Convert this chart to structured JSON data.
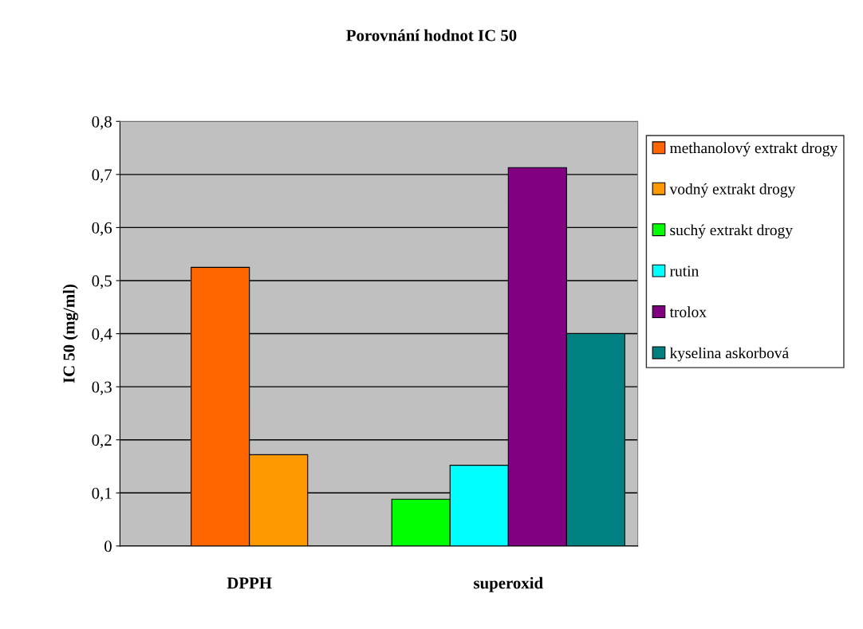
{
  "chart_data": {
    "type": "bar",
    "title": "Porovnání hodnot IC 50",
    "ylabel": "IC 50 (mg/ml)",
    "categories": [
      "DPPH",
      "superoxid"
    ],
    "series": [
      {
        "name": "methanolový extrakt drogy",
        "color": "#ff6600",
        "values": [
          0.525,
          null
        ]
      },
      {
        "name": "vodný extrakt drogy",
        "color": "#ff9900",
        "values": [
          0.172,
          null
        ]
      },
      {
        "name": "suchý extrakt drogy",
        "color": "#00ff00",
        "values": [
          null,
          0.088
        ]
      },
      {
        "name": "rutin",
        "color": "#00ffff",
        "values": [
          null,
          0.152
        ]
      },
      {
        "name": "trolox",
        "color": "#800080",
        "values": [
          null,
          0.713
        ]
      },
      {
        "name": "kyselina askorbová",
        "color": "#008080",
        "values": [
          null,
          0.4
        ]
      }
    ],
    "ylim": [
      0,
      0.8
    ],
    "yticks": [
      0,
      {
        "value": 0.1,
        "label": "0,1"
      },
      {
        "value": 0.2,
        "label": "0,2"
      },
      {
        "value": 0.3,
        "label": "0,3"
      },
      {
        "value": 0.4,
        "label": "0,4"
      },
      {
        "value": 0.5,
        "label": "0,5"
      },
      {
        "value": 0.6,
        "label": "0,6"
      },
      {
        "value": 0.7,
        "label": "0,7"
      },
      {
        "value": 0.8,
        "label": "0,8"
      }
    ],
    "grid": "y",
    "legend": "right"
  }
}
